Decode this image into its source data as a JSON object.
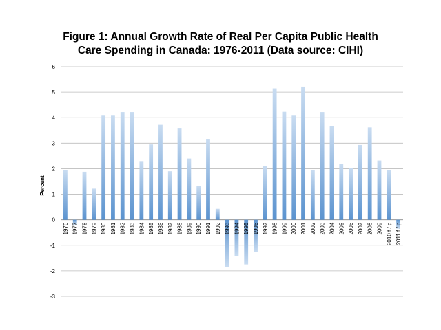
{
  "chart_data": {
    "type": "bar",
    "title_lines": [
      "Figure 1: Annual Growth Rate of Real Per Capita Public Health",
      "Care Spending in Canada: 1976-2011 (Data source: CIHI)"
    ],
    "xlabel": "",
    "ylabel": "Percent",
    "ylim": [
      -3,
      6
    ],
    "yticks": [
      -3,
      -2,
      -1,
      0,
      1,
      2,
      3,
      4,
      5,
      6
    ],
    "grid": true,
    "legend": "none",
    "categories": [
      "1976",
      "1977",
      "1978",
      "1979",
      "1980",
      "1981",
      "1982",
      "1983",
      "1984",
      "1985",
      "1986",
      "1987",
      "1988",
      "1989",
      "1990",
      "1991",
      "1992",
      "1993",
      "1994",
      "1995",
      "1996",
      "1997",
      "1998",
      "1999",
      "2000",
      "2001",
      "2002",
      "2003",
      "2004",
      "2005",
      "2006",
      "2007",
      "2008",
      "2009",
      "2010 f / p",
      "2011 f / p"
    ],
    "values": [
      1.95,
      -0.2,
      1.88,
      1.22,
      4.08,
      4.08,
      4.22,
      4.22,
      2.3,
      2.95,
      3.72,
      1.9,
      3.6,
      2.4,
      1.32,
      3.17,
      0.43,
      -1.85,
      -1.42,
      -1.75,
      -1.25,
      2.1,
      5.15,
      4.23,
      4.08,
      5.22,
      1.95,
      4.22,
      3.67,
      2.2,
      2.02,
      2.93,
      3.62,
      2.32,
      1.95,
      -0.35
    ],
    "colors": {
      "bar_light": "#c9dcf1",
      "bar_dark": "#5b93cf",
      "grid": "#bdbdbd",
      "axis": "#888888"
    }
  }
}
